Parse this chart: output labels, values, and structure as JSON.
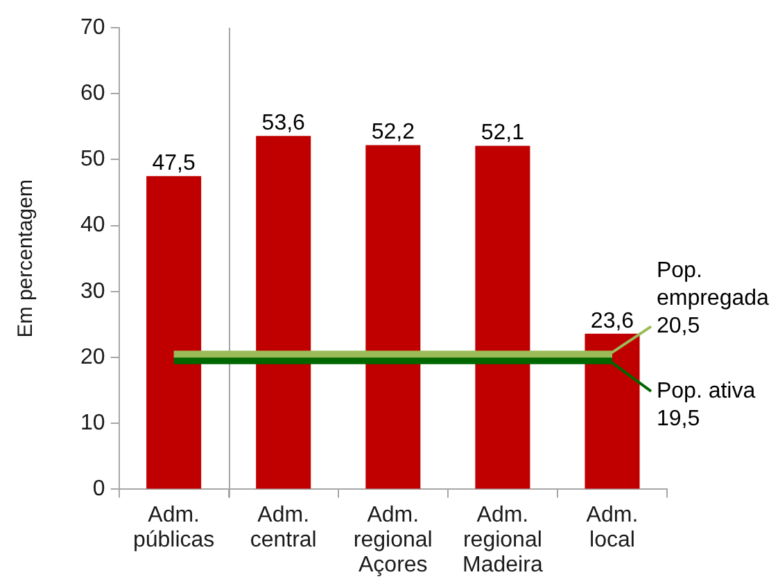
{
  "chart_data": {
    "type": "bar",
    "ylabel": "Em percentagem",
    "categories": [
      "Adm. públicas",
      "Adm. central",
      "Adm. regional Açores",
      "Adm. regional Madeira",
      "Adm. local"
    ],
    "series": [
      {
        "color": "#c00000",
        "values": [
          47.5,
          53.6,
          52.2,
          52.1,
          23.6
        ],
        "value_labels": [
          "47,5",
          "53,6",
          "52,2",
          "52,1",
          "23,6"
        ]
      },
      {
        "type": "line",
        "name": "Pop. empregada",
        "color": "#9bbb59",
        "values": [
          20.5,
          20.5,
          20.5,
          20.5,
          20.5
        ],
        "value_labels": [
          null,
          null,
          null,
          null,
          "20,5"
        ]
      },
      {
        "type": "line",
        "name": "Pop. ativa",
        "color": "#006600",
        "values": [
          19.5,
          19.5,
          19.5,
          19.5,
          19.5
        ],
        "value_labels": [
          null,
          null,
          null,
          null,
          "19,5"
        ]
      }
    ],
    "ylim": [
      0,
      70
    ],
    "yticks": [
      0,
      10,
      20,
      30,
      40,
      50,
      60,
      70
    ],
    "marker": "none"
  }
}
